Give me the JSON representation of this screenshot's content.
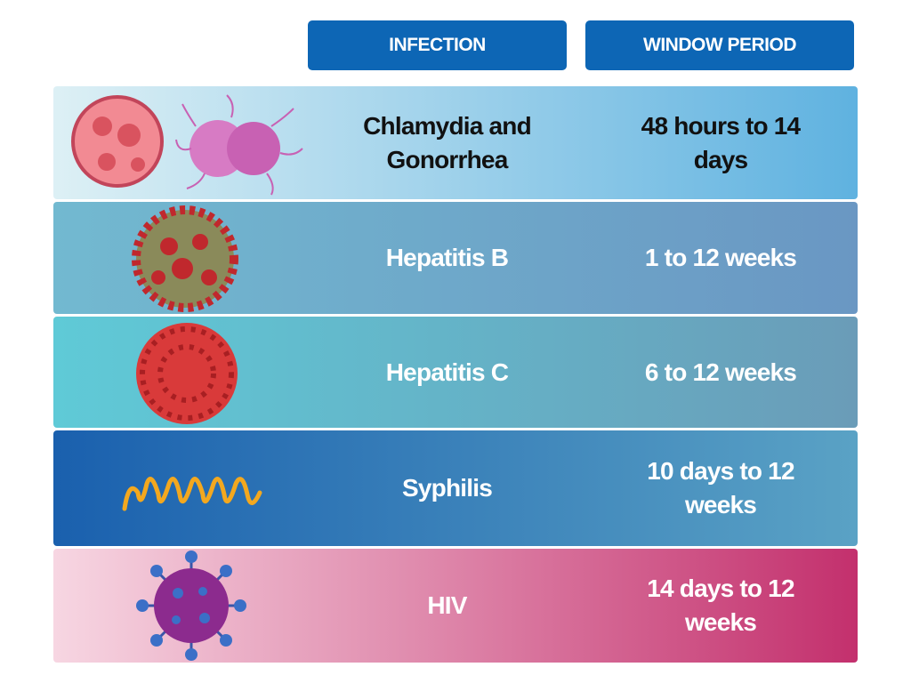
{
  "header": {
    "columns": [
      "INFECTION",
      "WINDOW PERIOD"
    ]
  },
  "table": {
    "rows": [
      [
        "Chlamydia and Gonorrhea",
        "48 hours to 14 days"
      ],
      [
        "Hepatitis B",
        "1 to 12 weeks"
      ],
      [
        "Hepatitis C",
        "6 to 12 weeks"
      ],
      [
        "Syphilis",
        "10 days to 12 weeks"
      ],
      [
        "HIV",
        "14 days to 12 weeks"
      ]
    ]
  }
}
